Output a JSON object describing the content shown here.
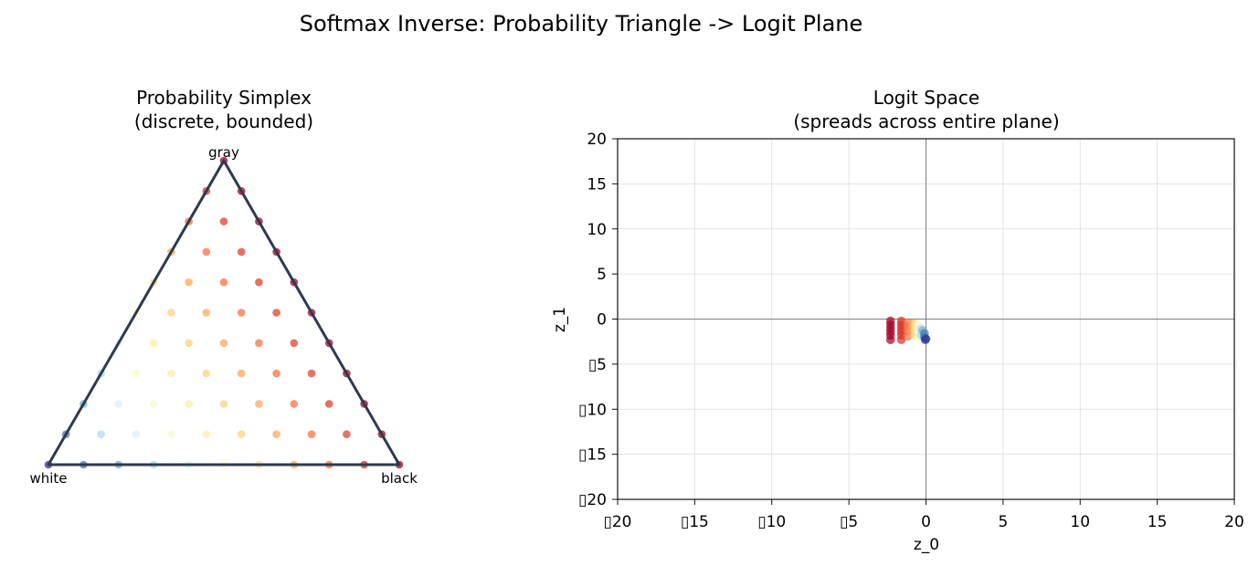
{
  "figure": {
    "suptitle": "Softmax Inverse: Probability Triangle -> Logit Plane"
  },
  "chart_data": [
    {
      "type": "scatter",
      "panel": "simplex",
      "title_line1": "Probability Simplex",
      "title_line2": "(discrete, bounded)",
      "vertex_labels": {
        "top": "gray",
        "left": "white",
        "right": "black"
      },
      "grid_divisions": 10,
      "coordinates": "barycentric (p_white, p_gray, p_black)",
      "colormap": "RdYlBu_r",
      "color_by": "p_black + p_gray",
      "edge_color": "#2e3b4e",
      "grid": false,
      "legend": "none"
    },
    {
      "type": "scatter",
      "panel": "logit",
      "title_line1": "Logit Space",
      "title_line2": "(spreads across entire plane)",
      "xlabel": "z_0",
      "ylabel": "z_1",
      "xlim": [
        -20,
        20
      ],
      "ylim": [
        -20,
        20
      ],
      "xticks": [
        -20,
        -15,
        -10,
        -5,
        0,
        5,
        10,
        15,
        20
      ],
      "yticks": [
        -20,
        -15,
        -10,
        -5,
        0,
        5,
        10,
        15,
        20
      ],
      "xtick_labels": [
        "▯20",
        "▯15",
        "▯10",
        "▯5",
        "0",
        "5",
        "10",
        "15",
        "20"
      ],
      "ytick_labels": [
        "▯20",
        "▯15",
        "▯10",
        "▯5",
        "0",
        "5",
        "10",
        "15",
        "20"
      ],
      "grid": true,
      "zero_lines": true,
      "legend": "none",
      "points": [
        {
          "x": -2.3,
          "y": -0.2,
          "c": 1.0
        },
        {
          "x": -2.3,
          "y": -0.6,
          "c": 1.0
        },
        {
          "x": -2.3,
          "y": -1.0,
          "c": 1.0
        },
        {
          "x": -2.3,
          "y": -1.4,
          "c": 1.0
        },
        {
          "x": -2.3,
          "y": -1.8,
          "c": 1.0
        },
        {
          "x": -2.3,
          "y": -2.3,
          "c": 1.0
        },
        {
          "x": -1.6,
          "y": -0.2,
          "c": 0.9
        },
        {
          "x": -1.6,
          "y": -0.6,
          "c": 0.9
        },
        {
          "x": -1.6,
          "y": -1.0,
          "c": 0.9
        },
        {
          "x": -1.6,
          "y": -1.4,
          "c": 0.9
        },
        {
          "x": -1.6,
          "y": -1.8,
          "c": 0.9
        },
        {
          "x": -1.6,
          "y": -2.3,
          "c": 0.9
        },
        {
          "x": -1.2,
          "y": -0.4,
          "c": 0.8
        },
        {
          "x": -1.2,
          "y": -0.8,
          "c": 0.8
        },
        {
          "x": -1.2,
          "y": -1.3,
          "c": 0.8
        },
        {
          "x": -1.2,
          "y": -1.9,
          "c": 0.8
        },
        {
          "x": -0.9,
          "y": -0.5,
          "c": 0.7
        },
        {
          "x": -0.9,
          "y": -1.0,
          "c": 0.7
        },
        {
          "x": -0.9,
          "y": -1.6,
          "c": 0.7
        },
        {
          "x": -0.7,
          "y": -0.6,
          "c": 0.6
        },
        {
          "x": -0.7,
          "y": -1.2,
          "c": 0.6
        },
        {
          "x": -0.7,
          "y": -1.8,
          "c": 0.6
        },
        {
          "x": -0.5,
          "y": -0.7,
          "c": 0.5
        },
        {
          "x": -0.5,
          "y": -1.3,
          "c": 0.5
        },
        {
          "x": -0.5,
          "y": -2.0,
          "c": 0.5
        },
        {
          "x": -0.4,
          "y": -0.9,
          "c": 0.4
        },
        {
          "x": -0.4,
          "y": -1.5,
          "c": 0.4
        },
        {
          "x": -0.3,
          "y": -1.1,
          "c": 0.3
        },
        {
          "x": -0.3,
          "y": -1.8,
          "c": 0.3
        },
        {
          "x": -0.2,
          "y": -1.3,
          "c": 0.2
        },
        {
          "x": -0.1,
          "y": -1.6,
          "c": 0.1
        },
        {
          "x": -0.1,
          "y": -2.0,
          "c": 0.1
        },
        {
          "x": 0.0,
          "y": -2.2,
          "c": 0.0
        },
        {
          "x": -0.05,
          "y": -2.3,
          "c": 0.0
        }
      ]
    }
  ]
}
